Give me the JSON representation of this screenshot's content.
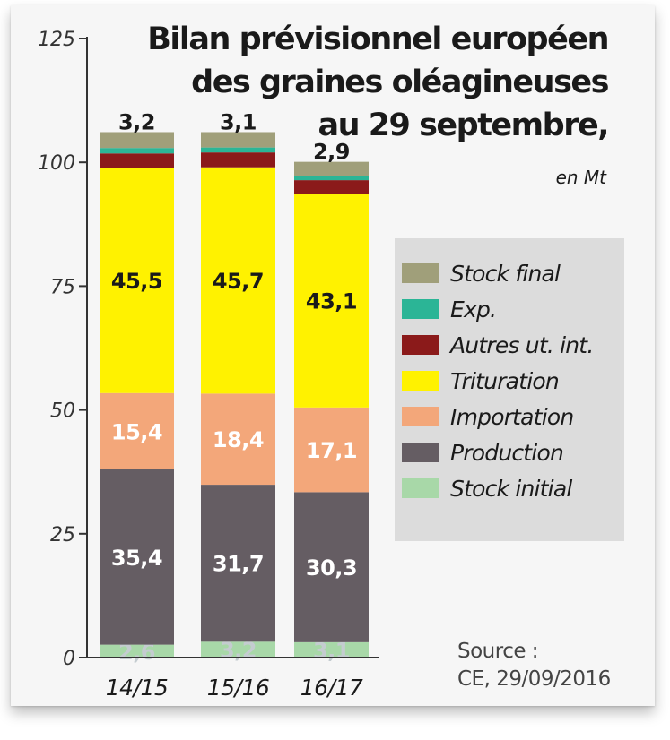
{
  "title_lines": [
    "Bilan prévisionnel européen",
    "des graines oléagineuses",
    "au 29 septembre,"
  ],
  "unit": "en Mt",
  "source_lines": [
    "Source :",
    "CE, 29/09/2016"
  ],
  "chart_data": {
    "type": "bar",
    "stacked": true,
    "categories": [
      "14/15",
      "15/16",
      "16/17"
    ],
    "ylim": [
      0,
      125
    ],
    "yticks": [
      0,
      25,
      50,
      75,
      100,
      125
    ],
    "grid": false,
    "legend_position": "right",
    "series": [
      {
        "name": "Stock initial",
        "color": "#a8d8a8",
        "values": [
          2.6,
          3.2,
          3.1
        ],
        "labels": [
          "2,6",
          "3,2",
          "3,1"
        ],
        "label_color": "#c4ccd0"
      },
      {
        "name": "Production",
        "color": "#655d63",
        "values": [
          35.4,
          31.7,
          30.3
        ],
        "labels": [
          "35,4",
          "31,7",
          "30,3"
        ],
        "label_color": "#ffffff"
      },
      {
        "name": "Importation",
        "color": "#f3a77a",
        "values": [
          15.4,
          18.4,
          17.1
        ],
        "labels": [
          "15,4",
          "18,4",
          "17,1"
        ],
        "label_color": "#ffffff"
      },
      {
        "name": "Trituration",
        "color": "#fff200",
        "values": [
          45.5,
          45.7,
          43.1
        ],
        "labels": [
          "45,5",
          "45,7",
          "43,1"
        ],
        "label_color": "#1a1a1a"
      },
      {
        "name": "Autres ut. int.",
        "color": "#8b1a1a",
        "values": [
          2.9,
          3.0,
          2.8
        ],
        "labels": [
          "",
          "",
          ""
        ],
        "label_color": "#ffffff"
      },
      {
        "name": "Exp.",
        "color": "#2bb596",
        "values": [
          1.1,
          1.0,
          0.8
        ],
        "labels": [
          "",
          "",
          ""
        ],
        "label_color": "#ffffff"
      },
      {
        "name": "Stock final",
        "color": "#a09f7a",
        "values": [
          3.2,
          3.1,
          2.9
        ],
        "labels": [
          "3,2",
          "3,1",
          "2,9"
        ],
        "label_color": "#1a1a1a"
      }
    ],
    "legend_order": [
      "Stock final",
      "Exp.",
      "Autres ut. int.",
      "Trituration",
      "Importation",
      "Production",
      "Stock initial"
    ]
  }
}
